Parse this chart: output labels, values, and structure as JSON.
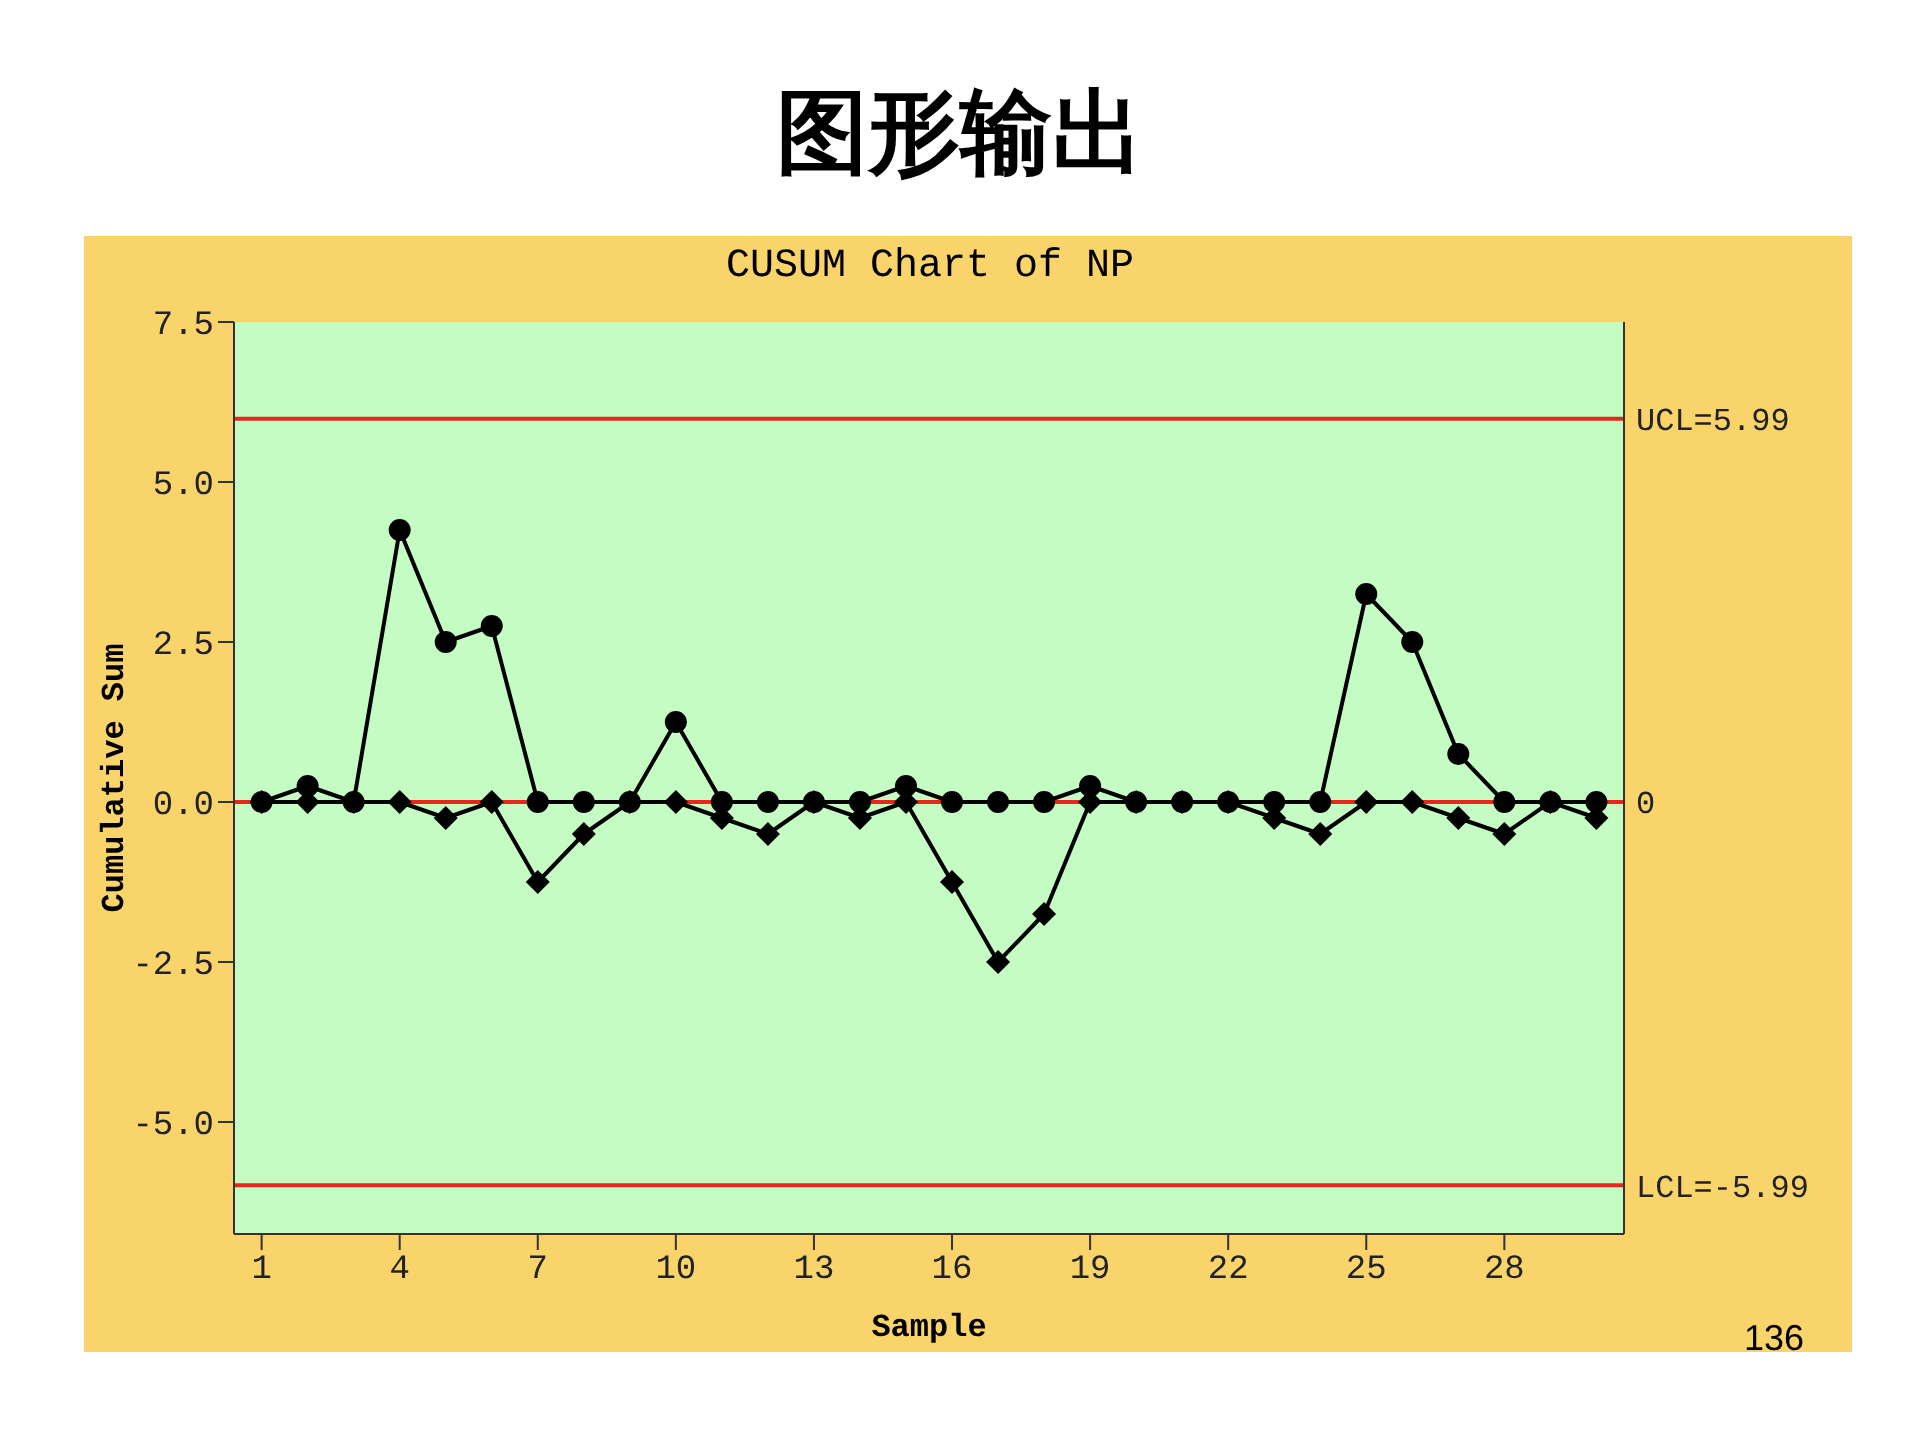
{
  "chart_data": {
    "type": "line",
    "title": "图形输出",
    "subtitle": "CUSUM Chart of NP",
    "xlabel": "Sample",
    "ylabel": "Cumulative Sum",
    "annotations": [
      "136"
    ],
    "x": [
      1,
      2,
      3,
      4,
      5,
      6,
      7,
      8,
      9,
      10,
      11,
      12,
      13,
      14,
      15,
      16,
      17,
      18,
      19,
      20,
      21,
      22,
      23,
      24,
      25,
      26,
      27,
      28,
      29,
      30
    ],
    "series": [
      {
        "color": "#000000",
        "marker": "circle",
        "values": [
          0,
          0.25,
          0,
          4.25,
          2.5,
          2.75,
          0,
          0,
          0,
          1.25,
          0,
          0,
          0,
          0,
          0.25,
          0,
          0,
          0,
          0.25,
          0,
          0,
          0,
          0,
          0,
          3.25,
          2.5,
          0.75,
          0,
          0,
          0
        ]
      },
      {
        "color": "#000000",
        "marker": "diamond",
        "values": [
          0,
          0,
          0,
          0,
          -0.25,
          0,
          -1.25,
          -0.5,
          0,
          0,
          -0.25,
          -0.5,
          0,
          -0.25,
          0,
          -1.25,
          -2.5,
          -1.75,
          0,
          0,
          0,
          0,
          -0.25,
          -0.5,
          0,
          0,
          -0.25,
          -0.5,
          0,
          -0.25
        ]
      }
    ],
    "xlim": [
      0.4,
      30.6
    ],
    "xticks": [
      1,
      4,
      7,
      10,
      13,
      16,
      19,
      22,
      25,
      28
    ],
    "ylim": [
      -6.75,
      7.5
    ],
    "yticks": [
      {
        "value": -5,
        "label": "-5.0"
      },
      {
        "value": -2.5,
        "label": "-2.5"
      },
      {
        "value": 0,
        "label": "0.0"
      },
      {
        "value": 2.5,
        "label": "2.5"
      },
      {
        "value": 5,
        "label": "5.0"
      },
      {
        "value": 7.5,
        "label": "7.5"
      }
    ],
    "ref_lines": [
      {
        "axis": "y",
        "value": 5.99,
        "label": "UCL=5.99",
        "color": "#e8261c"
      },
      {
        "axis": "y",
        "value": 0,
        "label": "0",
        "color": "#e8261c"
      },
      {
        "axis": "y",
        "value": -5.99,
        "label": "LCL=-5.99",
        "color": "#e8261c"
      }
    ],
    "grid": false,
    "line_style": "solid"
  }
}
